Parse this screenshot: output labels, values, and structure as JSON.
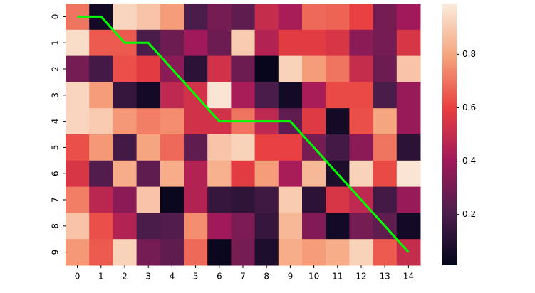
{
  "chart_data": {
    "type": "heatmap",
    "columns": [
      0,
      1,
      2,
      3,
      4,
      5,
      6,
      7,
      8,
      9,
      10,
      11,
      12,
      13,
      14
    ],
    "rows": [
      0,
      1,
      2,
      3,
      4,
      5,
      6,
      7,
      8,
      9
    ],
    "values": [
      [
        0.7,
        0.05,
        0.93,
        0.88,
        0.78,
        0.2,
        0.3,
        0.25,
        0.5,
        0.42,
        0.68,
        0.67,
        0.6,
        0.3,
        0.4
      ],
      [
        0.95,
        0.65,
        0.65,
        0.2,
        0.28,
        0.4,
        0.28,
        0.9,
        0.45,
        0.58,
        0.58,
        0.55,
        0.35,
        0.3,
        0.55
      ],
      [
        0.3,
        0.18,
        0.63,
        0.58,
        0.35,
        0.12,
        0.53,
        0.28,
        0.02,
        0.92,
        0.78,
        0.7,
        0.5,
        0.28,
        0.88
      ],
      [
        0.93,
        0.78,
        0.15,
        0.05,
        0.48,
        0.53,
        0.97,
        0.42,
        0.2,
        0.05,
        0.42,
        0.62,
        0.62,
        0.2,
        0.38
      ],
      [
        0.93,
        0.9,
        0.77,
        0.72,
        0.75,
        0.53,
        0.53,
        0.7,
        0.48,
        0.25,
        0.57,
        0.05,
        0.63,
        0.8,
        0.38
      ],
      [
        0.63,
        0.77,
        0.18,
        0.8,
        0.68,
        0.25,
        0.88,
        0.92,
        0.6,
        0.6,
        0.3,
        0.18,
        0.35,
        0.7,
        0.12
      ],
      [
        0.55,
        0.22,
        0.82,
        0.25,
        0.82,
        0.45,
        0.83,
        0.58,
        0.78,
        0.42,
        0.85,
        0.08,
        0.92,
        0.62,
        0.97
      ],
      [
        0.72,
        0.47,
        0.35,
        0.88,
        0.03,
        0.45,
        0.15,
        0.13,
        0.17,
        0.9,
        0.12,
        0.55,
        0.48,
        0.18,
        0.38
      ],
      [
        0.88,
        0.63,
        0.45,
        0.2,
        0.22,
        0.75,
        0.4,
        0.32,
        0.15,
        0.85,
        0.33,
        0.05,
        0.3,
        0.25,
        0.05
      ],
      [
        0.77,
        0.65,
        0.92,
        0.3,
        0.25,
        0.68,
        0.03,
        0.3,
        0.08,
        0.82,
        0.78,
        0.82,
        0.92,
        0.65,
        0.5
      ]
    ],
    "colorscale": [
      "#03051a",
      "#4c1d4b",
      "#a11a5b",
      "#e83f3f",
      "#f6a47c",
      "#faebdd"
    ],
    "clim": [
      0.01,
      0.99
    ],
    "cticks": [
      0.2,
      0.4,
      0.6,
      0.8
    ],
    "path": {
      "color": "#00ff00",
      "x": [
        0,
        1,
        2,
        3,
        4,
        5,
        6,
        7,
        8,
        9,
        10,
        11,
        12,
        13,
        14
      ],
      "y": [
        0,
        0,
        1,
        1,
        2,
        3,
        4,
        4,
        4,
        4,
        5,
        6,
        7,
        8,
        9
      ]
    }
  }
}
